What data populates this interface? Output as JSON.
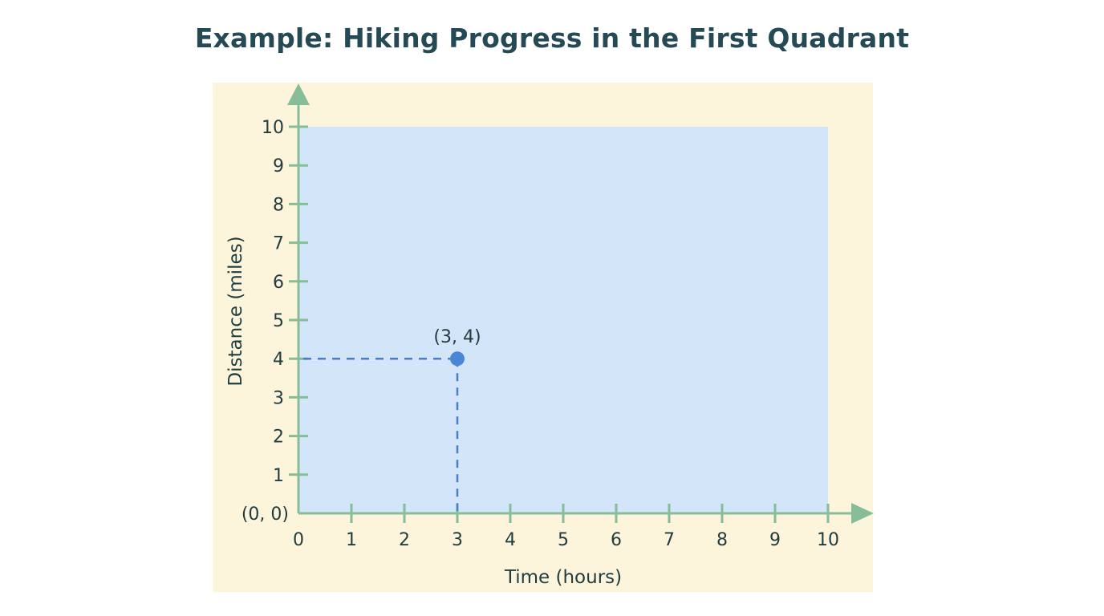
{
  "chart_data": {
    "type": "scatter",
    "title": "Example: Hiking Progress in the First Quadrant",
    "xlabel": "Time (hours)",
    "ylabel": "Distance (miles)",
    "xlim": [
      0,
      10
    ],
    "ylim": [
      0,
      10
    ],
    "x_ticks": [
      "0",
      "1",
      "2",
      "3",
      "4",
      "5",
      "6",
      "7",
      "8",
      "9",
      "10"
    ],
    "y_ticks": [
      "1",
      "2",
      "3",
      "4",
      "5",
      "6",
      "7",
      "8",
      "9",
      "10"
    ],
    "origin_label": "(0, 0)",
    "grid": false,
    "points": [
      {
        "x": 3,
        "y": 4,
        "label": "(3, 4)"
      }
    ],
    "annotations": [
      "(3, 4)",
      "(0, 0)"
    ],
    "projection_lines": "dashed lines from point (3,4) to x-axis and y-axis"
  },
  "colors": {
    "title": "#254a56",
    "outer_bg": "#fcf5dc",
    "quadrant_fill": "#d3e5f8",
    "axis": "#86bd98",
    "point": "#4a86d8",
    "dashed": "#4a7ec8",
    "text": "#1f3d3f"
  }
}
